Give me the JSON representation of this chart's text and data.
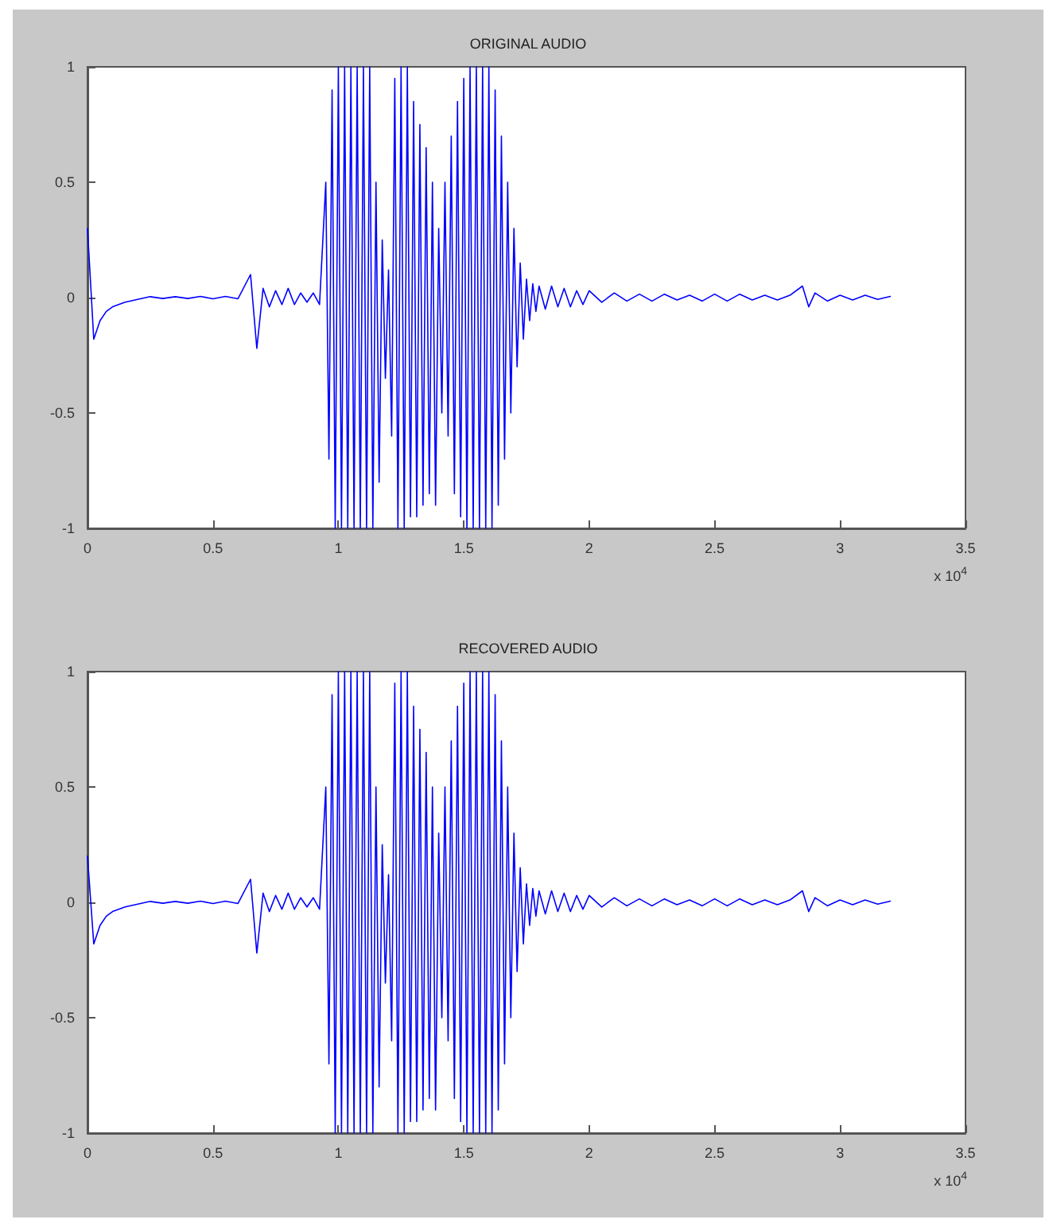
{
  "chart_data": [
    {
      "type": "line",
      "title": "ORIGINAL AUDIO",
      "xlabel": "x 10$^{4}$",
      "xlim": [
        0,
        3.5
      ],
      "xticks": [
        0,
        0.5,
        1,
        1.5,
        2,
        2.5,
        3,
        3.5
      ],
      "ylim": [
        -1,
        1
      ],
      "yticks": [
        -1,
        -0.5,
        0,
        0.5,
        1
      ],
      "grid": false,
      "marker": "none",
      "line_style": "solid",
      "series": [
        {
          "color": "#0000ff",
          "x": [
            0,
            0.025,
            0.05,
            0.075,
            0.1,
            0.15,
            0.2,
            0.25,
            0.3,
            0.35,
            0.4,
            0.45,
            0.5,
            0.55,
            0.6,
            0.65,
            0.675,
            0.7,
            0.725,
            0.75,
            0.775,
            0.8,
            0.825,
            0.85,
            0.875,
            0.9,
            0.925,
            0.95,
            0.9625,
            0.975,
            0.9875,
            1.0,
            1.0125,
            1.025,
            1.0375,
            1.05,
            1.0625,
            1.075,
            1.0875,
            1.1,
            1.1125,
            1.125,
            1.1375,
            1.15,
            1.1625,
            1.175,
            1.1875,
            1.2,
            1.2125,
            1.225,
            1.2375,
            1.25,
            1.2625,
            1.275,
            1.2875,
            1.3,
            1.3125,
            1.325,
            1.3375,
            1.35,
            1.3625,
            1.375,
            1.3875,
            1.4,
            1.4125,
            1.425,
            1.4375,
            1.45,
            1.4625,
            1.475,
            1.4875,
            1.5,
            1.5125,
            1.525,
            1.5375,
            1.55,
            1.5625,
            1.575,
            1.5875,
            1.6,
            1.6125,
            1.625,
            1.6375,
            1.65,
            1.6625,
            1.675,
            1.6875,
            1.7,
            1.7125,
            1.725,
            1.7375,
            1.75,
            1.7625,
            1.775,
            1.7875,
            1.8,
            1.825,
            1.85,
            1.875,
            1.9,
            1.925,
            1.95,
            1.975,
            2.0,
            2.05,
            2.1,
            2.15,
            2.2,
            2.25,
            2.3,
            2.35,
            2.4,
            2.45,
            2.5,
            2.55,
            2.6,
            2.65,
            2.7,
            2.75,
            2.8,
            2.85,
            2.875,
            2.9,
            2.95,
            3.0,
            3.05,
            3.1,
            3.15,
            3.2
          ],
          "values": [
            0.3,
            -0.18,
            -0.1,
            -0.06,
            -0.04,
            -0.02,
            -0.008,
            0.004,
            -0.004,
            0.004,
            -0.004,
            0.005,
            -0.005,
            0.005,
            -0.005,
            0.1,
            -0.22,
            0.04,
            -0.04,
            0.03,
            -0.03,
            0.04,
            -0.03,
            0.02,
            -0.02,
            0.02,
            -0.03,
            0.5,
            -0.7,
            0.9,
            -1,
            1,
            -1,
            1,
            -1,
            1,
            -1,
            1,
            -1,
            1,
            -1,
            1,
            -1,
            0.5,
            -0.8,
            0.25,
            -0.35,
            0.12,
            -0.6,
            0.95,
            -1,
            1,
            -1,
            1,
            -0.95,
            0.85,
            -0.95,
            0.75,
            -0.9,
            0.65,
            -0.85,
            0.5,
            -0.9,
            0.3,
            -0.5,
            0.5,
            -0.6,
            0.7,
            -0.85,
            0.85,
            -0.95,
            0.95,
            -1,
            1,
            -1,
            1,
            -1,
            1,
            -1,
            1,
            -1,
            0.9,
            -0.9,
            0.7,
            -0.7,
            0.5,
            -0.5,
            0.3,
            -0.3,
            0.15,
            -0.18,
            0.08,
            -0.1,
            0.06,
            -0.06,
            0.05,
            -0.05,
            0.05,
            -0.04,
            0.04,
            -0.04,
            0.03,
            -0.03,
            0.03,
            -0.02,
            0.02,
            -0.015,
            0.015,
            -0.015,
            0.015,
            -0.01,
            0.01,
            -0.015,
            0.015,
            -0.015,
            0.015,
            -0.01,
            0.01,
            -0.01,
            0.01,
            0.05,
            -0.04,
            0.02,
            -0.015,
            0.01,
            -0.01,
            0.01,
            -0.008,
            0.005
          ]
        }
      ]
    },
    {
      "type": "line",
      "title": "RECOVERED AUDIO",
      "xlabel": "x 10$^{4}$",
      "xlim": [
        0,
        3.5
      ],
      "xticks": [
        0,
        0.5,
        1,
        1.5,
        2,
        2.5,
        3,
        3.5
      ],
      "ylim": [
        -1,
        1
      ],
      "yticks": [
        -1,
        -0.5,
        0,
        0.5,
        1
      ],
      "grid": false,
      "marker": "none",
      "line_style": "solid",
      "series": [
        {
          "color": "#0000ff",
          "x": [
            0,
            0.025,
            0.05,
            0.075,
            0.1,
            0.15,
            0.2,
            0.25,
            0.3,
            0.35,
            0.4,
            0.45,
            0.5,
            0.55,
            0.6,
            0.65,
            0.675,
            0.7,
            0.725,
            0.75,
            0.775,
            0.8,
            0.825,
            0.85,
            0.875,
            0.9,
            0.925,
            0.95,
            0.9625,
            0.975,
            0.9875,
            1.0,
            1.0125,
            1.025,
            1.0375,
            1.05,
            1.0625,
            1.075,
            1.0875,
            1.1,
            1.1125,
            1.125,
            1.1375,
            1.15,
            1.1625,
            1.175,
            1.1875,
            1.2,
            1.2125,
            1.225,
            1.2375,
            1.25,
            1.2625,
            1.275,
            1.2875,
            1.3,
            1.3125,
            1.325,
            1.3375,
            1.35,
            1.3625,
            1.375,
            1.3875,
            1.4,
            1.4125,
            1.425,
            1.4375,
            1.45,
            1.4625,
            1.475,
            1.4875,
            1.5,
            1.5125,
            1.525,
            1.5375,
            1.55,
            1.5625,
            1.575,
            1.5875,
            1.6,
            1.6125,
            1.625,
            1.6375,
            1.65,
            1.6625,
            1.675,
            1.6875,
            1.7,
            1.7125,
            1.725,
            1.7375,
            1.75,
            1.7625,
            1.775,
            1.7875,
            1.8,
            1.825,
            1.85,
            1.875,
            1.9,
            1.925,
            1.95,
            1.975,
            2.0,
            2.05,
            2.1,
            2.15,
            2.2,
            2.25,
            2.3,
            2.35,
            2.4,
            2.45,
            2.5,
            2.55,
            2.6,
            2.65,
            2.7,
            2.75,
            2.8,
            2.85,
            2.875,
            2.9,
            2.95,
            3.0,
            3.05,
            3.1,
            3.15,
            3.2
          ],
          "values": [
            0.2,
            -0.18,
            -0.1,
            -0.06,
            -0.04,
            -0.02,
            -0.008,
            0.004,
            -0.004,
            0.004,
            -0.004,
            0.005,
            -0.005,
            0.005,
            -0.005,
            0.1,
            -0.22,
            0.04,
            -0.04,
            0.03,
            -0.03,
            0.04,
            -0.03,
            0.02,
            -0.02,
            0.02,
            -0.03,
            0.5,
            -0.7,
            0.9,
            -1,
            1,
            -1,
            1,
            -1,
            1,
            -1,
            1,
            -1,
            1,
            -1,
            1,
            -1,
            0.5,
            -0.8,
            0.25,
            -0.35,
            0.12,
            -0.6,
            0.95,
            -1,
            1,
            -1,
            1,
            -0.95,
            0.85,
            -0.95,
            0.75,
            -0.9,
            0.65,
            -0.85,
            0.5,
            -0.9,
            0.3,
            -0.5,
            0.5,
            -0.6,
            0.7,
            -0.85,
            0.85,
            -0.95,
            0.95,
            -1,
            1,
            -1,
            1,
            -1,
            1,
            -1,
            1,
            -1,
            0.9,
            -0.9,
            0.7,
            -0.7,
            0.5,
            -0.5,
            0.3,
            -0.3,
            0.15,
            -0.18,
            0.08,
            -0.1,
            0.06,
            -0.06,
            0.05,
            -0.05,
            0.05,
            -0.04,
            0.04,
            -0.04,
            0.03,
            -0.03,
            0.03,
            -0.02,
            0.02,
            -0.015,
            0.015,
            -0.015,
            0.015,
            -0.01,
            0.01,
            -0.015,
            0.015,
            -0.015,
            0.015,
            -0.01,
            0.01,
            -0.01,
            0.01,
            0.05,
            -0.04,
            0.02,
            -0.015,
            0.01,
            -0.01,
            0.01,
            -0.008,
            0.005
          ]
        }
      ]
    }
  ]
}
